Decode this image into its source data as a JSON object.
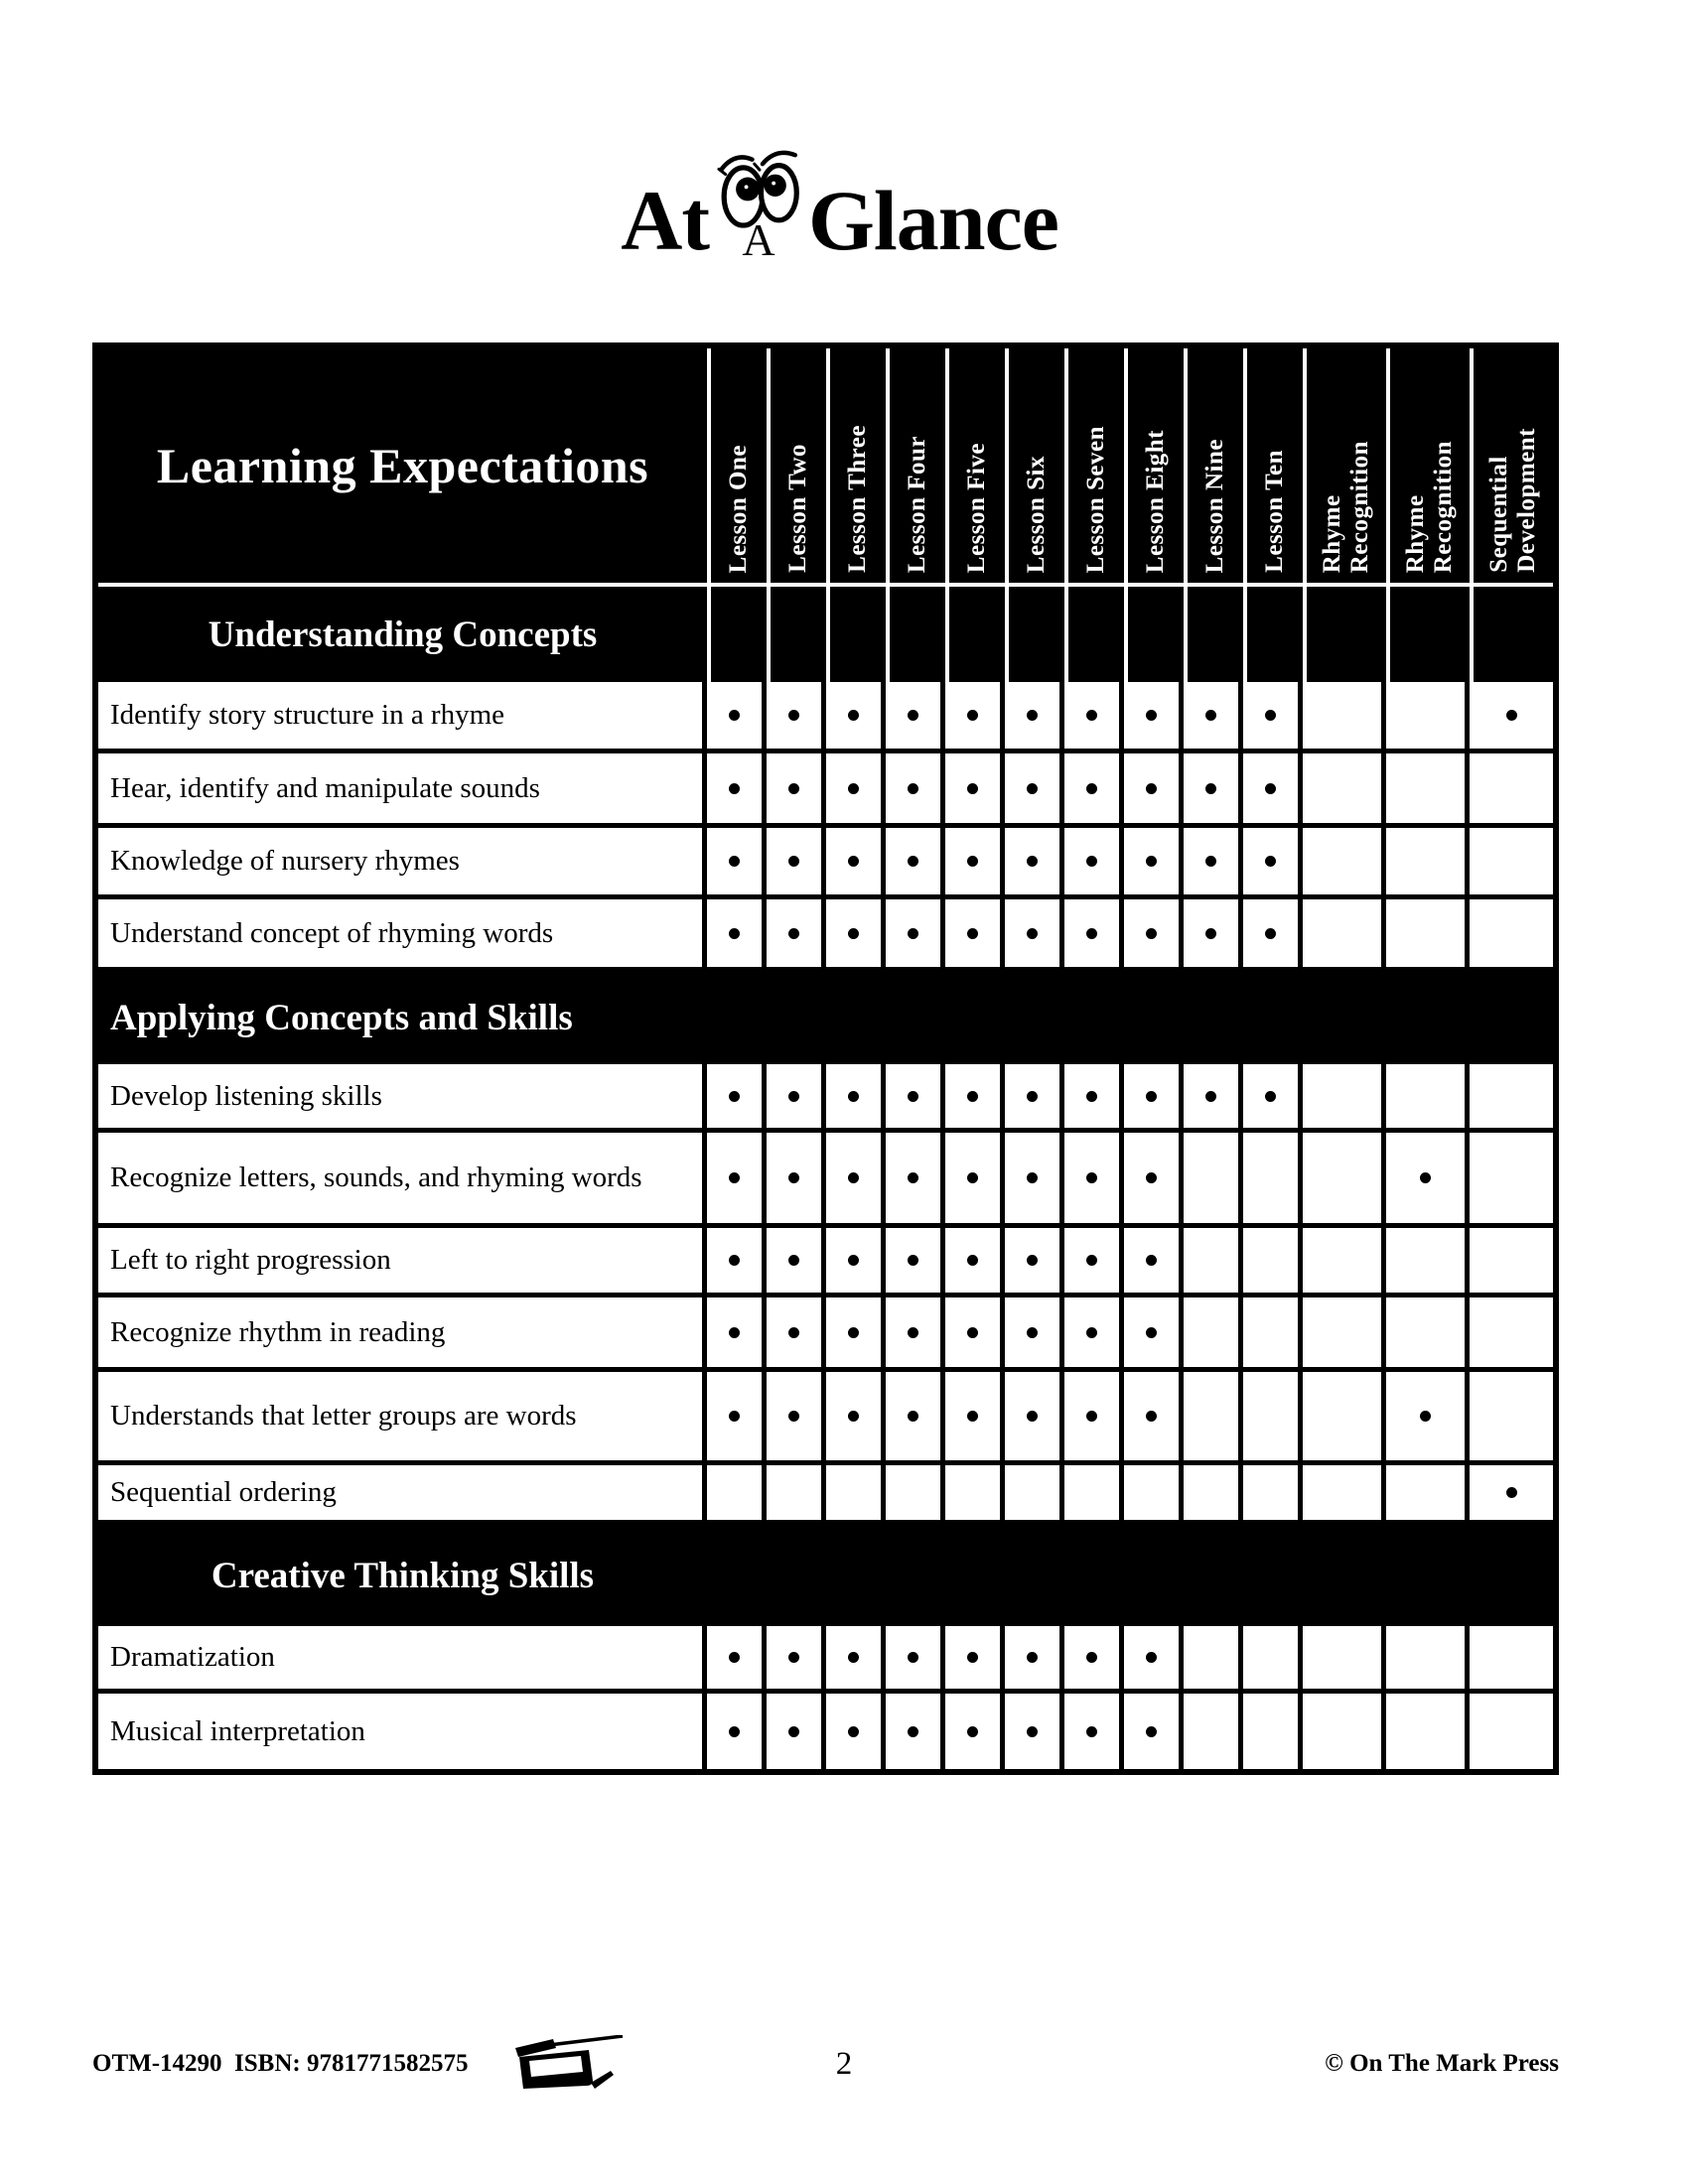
{
  "colors": {
    "ink": "#000000",
    "paper": "#ffffff"
  },
  "title": {
    "word1": "At",
    "middle_letter": "A",
    "word2": "Glance",
    "icon": "googly-eyes-icon"
  },
  "table": {
    "corner_label": "Learning Expectations",
    "columns": [
      {
        "lines": [
          "Lesson One"
        ]
      },
      {
        "lines": [
          "Lesson Two"
        ]
      },
      {
        "lines": [
          "Lesson Three"
        ]
      },
      {
        "lines": [
          "Lesson Four"
        ]
      },
      {
        "lines": [
          "Lesson Five"
        ]
      },
      {
        "lines": [
          "Lesson Six"
        ]
      },
      {
        "lines": [
          "Lesson Seven"
        ]
      },
      {
        "lines": [
          "Lesson Eight"
        ]
      },
      {
        "lines": [
          "Lesson Nine"
        ]
      },
      {
        "lines": [
          "Lesson Ten"
        ]
      },
      {
        "lines": [
          "Rhyme",
          "Recognition"
        ]
      },
      {
        "lines": [
          "Rhyme",
          "Recognition"
        ]
      },
      {
        "lines": [
          "Sequential",
          "Development"
        ]
      }
    ],
    "sections": [
      {
        "title": "Understanding Concepts",
        "style": "column-separators",
        "align": "center",
        "rows": [
          {
            "label": "Identify story structure in a rhyme",
            "dots": [
              1,
              1,
              1,
              1,
              1,
              1,
              1,
              1,
              1,
              1,
              0,
              0,
              1
            ]
          },
          {
            "label": "Hear, identify and manipulate sounds",
            "dots": [
              1,
              1,
              1,
              1,
              1,
              1,
              1,
              1,
              1,
              1,
              0,
              0,
              0
            ]
          },
          {
            "label": "Knowledge of nursery rhymes",
            "dots": [
              1,
              1,
              1,
              1,
              1,
              1,
              1,
              1,
              1,
              1,
              0,
              0,
              0
            ]
          },
          {
            "label": "Understand concept of rhyming words",
            "dots": [
              1,
              1,
              1,
              1,
              1,
              1,
              1,
              1,
              1,
              1,
              0,
              0,
              0
            ]
          }
        ]
      },
      {
        "title": "Applying Concepts and Skills",
        "style": "solid",
        "align": "left",
        "rows": [
          {
            "label": "Develop listening skills",
            "dots": [
              1,
              1,
              1,
              1,
              1,
              1,
              1,
              1,
              1,
              1,
              0,
              0,
              0
            ]
          },
          {
            "label": "Recognize letters, sounds, and rhyming words",
            "dots": [
              1,
              1,
              1,
              1,
              1,
              1,
              1,
              1,
              0,
              0,
              0,
              1,
              0
            ]
          },
          {
            "label": "Left to right progression",
            "dots": [
              1,
              1,
              1,
              1,
              1,
              1,
              1,
              1,
              0,
              0,
              0,
              0,
              0
            ]
          },
          {
            "label": "Recognize rhythm in reading",
            "dots": [
              1,
              1,
              1,
              1,
              1,
              1,
              1,
              1,
              0,
              0,
              0,
              0,
              0
            ]
          },
          {
            "label": "Understands that letter groups are words",
            "dots": [
              1,
              1,
              1,
              1,
              1,
              1,
              1,
              1,
              0,
              0,
              0,
              1,
              0
            ]
          },
          {
            "label": "Sequential ordering",
            "dots": [
              0,
              0,
              0,
              0,
              0,
              0,
              0,
              0,
              0,
              0,
              0,
              0,
              1
            ]
          }
        ]
      },
      {
        "title": "Creative Thinking Skills",
        "style": "solid",
        "align": "center",
        "rows": [
          {
            "label": "Dramatization",
            "dots": [
              1,
              1,
              1,
              1,
              1,
              1,
              1,
              1,
              0,
              0,
              0,
              0,
              0
            ]
          },
          {
            "label": "Musical interpretation",
            "dots": [
              1,
              1,
              1,
              1,
              1,
              1,
              1,
              1,
              0,
              0,
              0,
              0,
              0
            ]
          }
        ]
      }
    ]
  },
  "footer": {
    "left": "OTM-14290  ISBN: 9781771582575",
    "icon": "photocopier-icon",
    "page_number": "2",
    "right": "© On The Mark Press"
  }
}
